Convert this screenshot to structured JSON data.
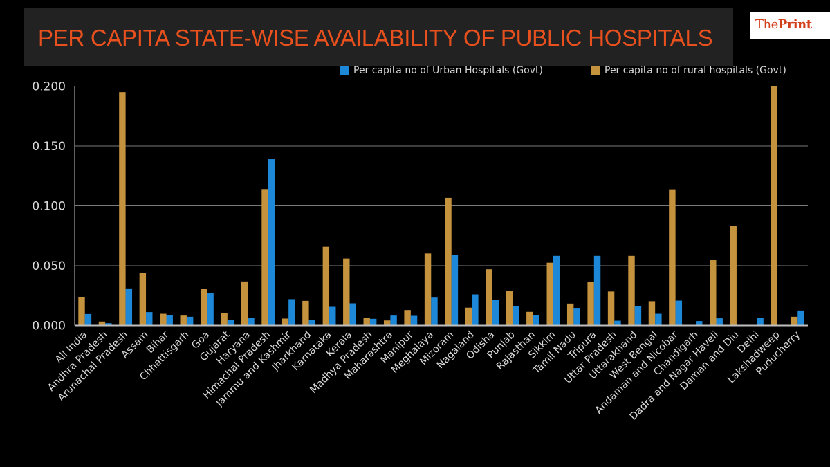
{
  "header": {
    "title": "PER CAPITA STATE-WISE AVAILABILITY OF PUBLIC HOSPITALS",
    "logo_light": "The",
    "logo_bold": "Print"
  },
  "colors": {
    "urban": "#1E88D8",
    "rural": "#C5923E",
    "title": "#E8501E",
    "grid": "#7a7a7a",
    "axis_text": "#d9d9d9"
  },
  "chart_data": {
    "type": "bar",
    "title": "PER CAPITA STATE-WISE AVAILABILITY OF PUBLIC HOSPITALS",
    "xlabel": "",
    "ylabel": "",
    "ylim": [
      0,
      0.2
    ],
    "yticks": [
      "0.000",
      "0.050",
      "0.100",
      "0.150",
      "0.200"
    ],
    "ytick_values": [
      0,
      0.05,
      0.1,
      0.15,
      0.2
    ],
    "grid": true,
    "legend_position": "top-right",
    "categories": [
      "All India",
      "Andhra Pradesh",
      "Arunachal Pradesh",
      "Assam",
      "Bihar",
      "Chhattisgarh",
      "Goa",
      "Gujarat",
      "Haryana",
      "Himachal Pradesh",
      "Jammu and Kashmir",
      "Jharkhand",
      "Karnataka",
      "Kerala",
      "Madhya Pradesh",
      "Maharashtra",
      "Manipur",
      "Meghalaya",
      "Mizoram",
      "Nagaland",
      "Odisha",
      "Punjab",
      "Rajasthan",
      "Sikkim",
      "Tamil Nadu",
      "Tripura",
      "Uttar Pradesh",
      "Uttarakhand",
      "West Bengal",
      "Andaman and Nicobar",
      "Chandigarh",
      "Dadra and Nagar Haveli",
      "Daman and Diu",
      "Delhi",
      "Lakshadweep",
      "Puducherry"
    ],
    "series": [
      {
        "name": "Per capita no of rural hospitals (Govt)",
        "color": "#C5923E",
        "values": [
          0.0235,
          0.0033,
          0.195,
          0.0438,
          0.0098,
          0.0083,
          0.0305,
          0.0102,
          0.0368,
          0.114,
          0.0058,
          0.0206,
          0.0658,
          0.056,
          0.0062,
          0.0042,
          0.0129,
          0.0602,
          0.1067,
          0.0149,
          0.047,
          0.0291,
          0.0114,
          0.0525,
          0.0183,
          0.0363,
          0.0284,
          0.0582,
          0.0203,
          0.1138,
          0,
          0.0546,
          0.0831,
          0,
          0.2,
          0.0073
        ]
      },
      {
        "name": "Per capita no of Urban Hospitals (Govt)",
        "color": "#1E88D8",
        "values": [
          0.0096,
          0.0019,
          0.031,
          0.0112,
          0.0085,
          0.0073,
          0.0274,
          0.0044,
          0.0064,
          0.139,
          0.022,
          0.0044,
          0.0156,
          0.0185,
          0.0056,
          0.0083,
          0.0081,
          0.0233,
          0.0592,
          0.026,
          0.0212,
          0.0162,
          0.0085,
          0.0582,
          0.0147,
          0.0582,
          0.004,
          0.0162,
          0.0098,
          0.0208,
          0.0037,
          0.006,
          0,
          0.0064,
          0,
          0.0125
        ]
      }
    ],
    "legend": [
      {
        "label": "Per capita no of Urban Hospitals (Govt)",
        "color": "#1E88D8"
      },
      {
        "label": "Per capita no of rural hospitals (Govt)",
        "color": "#C5923E"
      }
    ]
  }
}
